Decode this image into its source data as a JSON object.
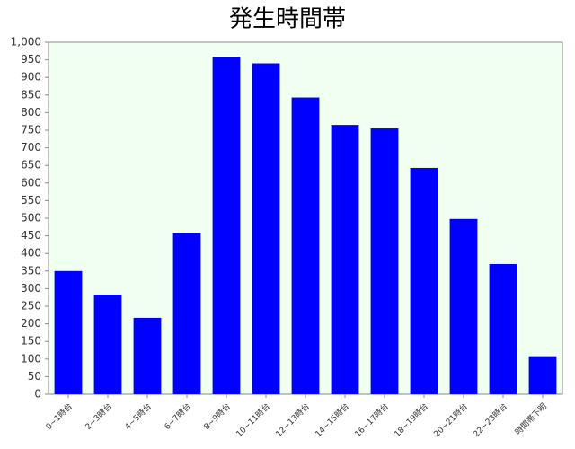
{
  "chart_data": {
    "type": "bar",
    "title": "発生時間帯",
    "categories": [
      "0~1時台",
      "2~3時台",
      "4~5時台",
      "6~7時台",
      "8~9時台",
      "10~11時台",
      "12~13時台",
      "14~15時台",
      "16~17時台",
      "18~19時台",
      "20~21時台",
      "22~23時台",
      "時間帯不明"
    ],
    "values": [
      350,
      283,
      217,
      458,
      958,
      940,
      843,
      765,
      755,
      643,
      498,
      370,
      108
    ],
    "color": "#0000ff",
    "ylim": [
      0,
      1000
    ],
    "yticks": [
      0,
      50,
      100,
      150,
      200,
      250,
      300,
      350,
      400,
      450,
      500,
      550,
      600,
      650,
      700,
      750,
      800,
      850,
      900,
      950,
      {
        "value": 1000,
        "label": "1,000"
      }
    ],
    "grid": false
  }
}
